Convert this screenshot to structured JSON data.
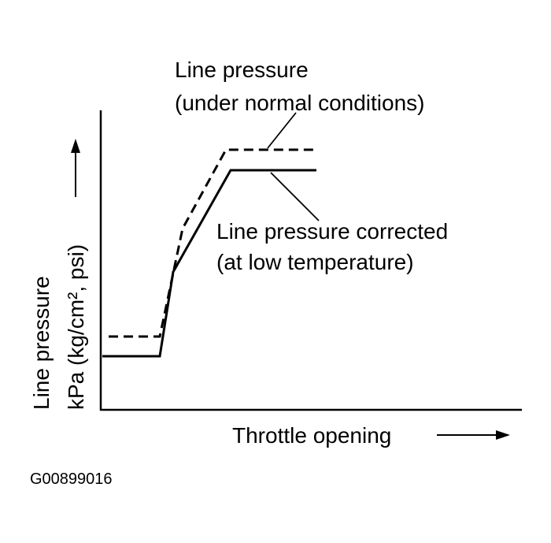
{
  "diagram": {
    "normal_label": [
      "Line pressure",
      "(under normal conditions)"
    ],
    "corrected_label": [
      "Line pressure corrected",
      "(at low temperature)"
    ],
    "y_axis_label": [
      "Line pressure",
      "kPa (kg/cm², psi)"
    ],
    "x_axis_label": "Throttle opening",
    "figure_id": "G00899016"
  }
}
